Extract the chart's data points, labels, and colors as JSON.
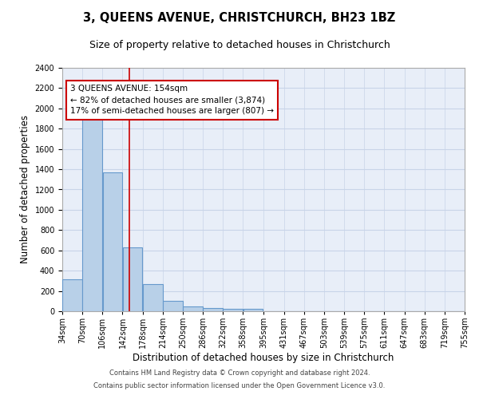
{
  "title": "3, QUEENS AVENUE, CHRISTCHURCH, BH23 1BZ",
  "subtitle": "Size of property relative to detached houses in Christchurch",
  "xlabel": "Distribution of detached houses by size in Christchurch",
  "ylabel": "Number of detached properties",
  "footnote1": "Contains HM Land Registry data © Crown copyright and database right 2024.",
  "footnote2": "Contains public sector information licensed under the Open Government Licence v3.0.",
  "bar_left_edges": [
    34,
    70,
    106,
    142,
    178,
    214,
    250,
    286,
    322,
    358,
    395,
    431,
    467,
    503,
    539,
    575,
    611,
    647,
    683,
    719
  ],
  "bar_heights": [
    315,
    1950,
    1370,
    630,
    270,
    100,
    45,
    30,
    25,
    20,
    0,
    0,
    0,
    0,
    0,
    0,
    0,
    0,
    0,
    0
  ],
  "bin_width": 36,
  "bar_color": "#b8d0e8",
  "bar_edge_color": "#6699cc",
  "bar_linewidth": 0.8,
  "red_line_x": 154,
  "red_line_color": "#cc0000",
  "annotation_text": "3 QUEENS AVENUE: 154sqm\n← 82% of detached houses are smaller (3,874)\n17% of semi-detached houses are larger (807) →",
  "annotation_box_color": "#ffffff",
  "annotation_box_edgecolor": "#cc0000",
  "annotation_fontsize": 7.5,
  "xlim": [
    34,
    755
  ],
  "ylim": [
    0,
    2400
  ],
  "yticks": [
    0,
    200,
    400,
    600,
    800,
    1000,
    1200,
    1400,
    1600,
    1800,
    2000,
    2200,
    2400
  ],
  "xtick_labels": [
    "34sqm",
    "70sqm",
    "106sqm",
    "142sqm",
    "178sqm",
    "214sqm",
    "250sqm",
    "286sqm",
    "322sqm",
    "358sqm",
    "395sqm",
    "431sqm",
    "467sqm",
    "503sqm",
    "539sqm",
    "575sqm",
    "611sqm",
    "647sqm",
    "683sqm",
    "719sqm",
    "755sqm"
  ],
  "xtick_positions": [
    34,
    70,
    106,
    142,
    178,
    214,
    250,
    286,
    322,
    358,
    395,
    431,
    467,
    503,
    539,
    575,
    611,
    647,
    683,
    719,
    755
  ],
  "grid_color": "#c8d4e8",
  "background_color": "#e8eef8",
  "title_fontsize": 10.5,
  "subtitle_fontsize": 9,
  "xlabel_fontsize": 8.5,
  "ylabel_fontsize": 8.5,
  "tick_fontsize": 7
}
